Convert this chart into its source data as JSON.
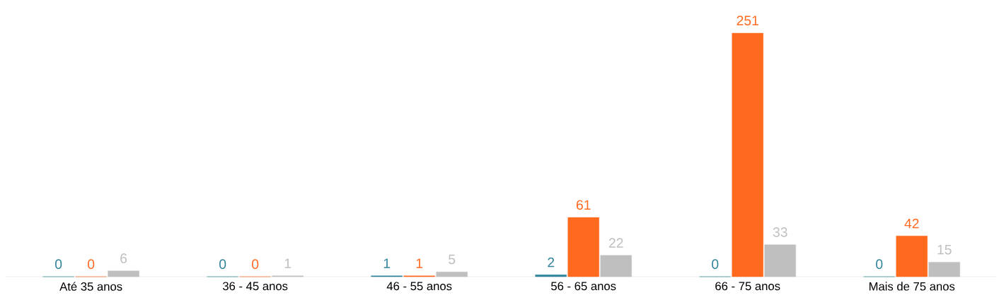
{
  "chart_data": {
    "type": "bar",
    "categories": [
      "Até 35 anos",
      "36 - 45 anos",
      "46 - 55 anos",
      "56 - 65 anos",
      "66 - 75 anos",
      "Mais de 75 anos"
    ],
    "series": [
      {
        "color": "#31849b",
        "values": [
          0,
          0,
          1,
          2,
          0,
          0
        ]
      },
      {
        "color": "#ff6a1f",
        "values": [
          0,
          0,
          1,
          61,
          251,
          42
        ]
      },
      {
        "color": "#bfbfbf",
        "values": [
          6,
          1,
          5,
          22,
          33,
          15
        ]
      }
    ],
    "data_labels": true
  }
}
